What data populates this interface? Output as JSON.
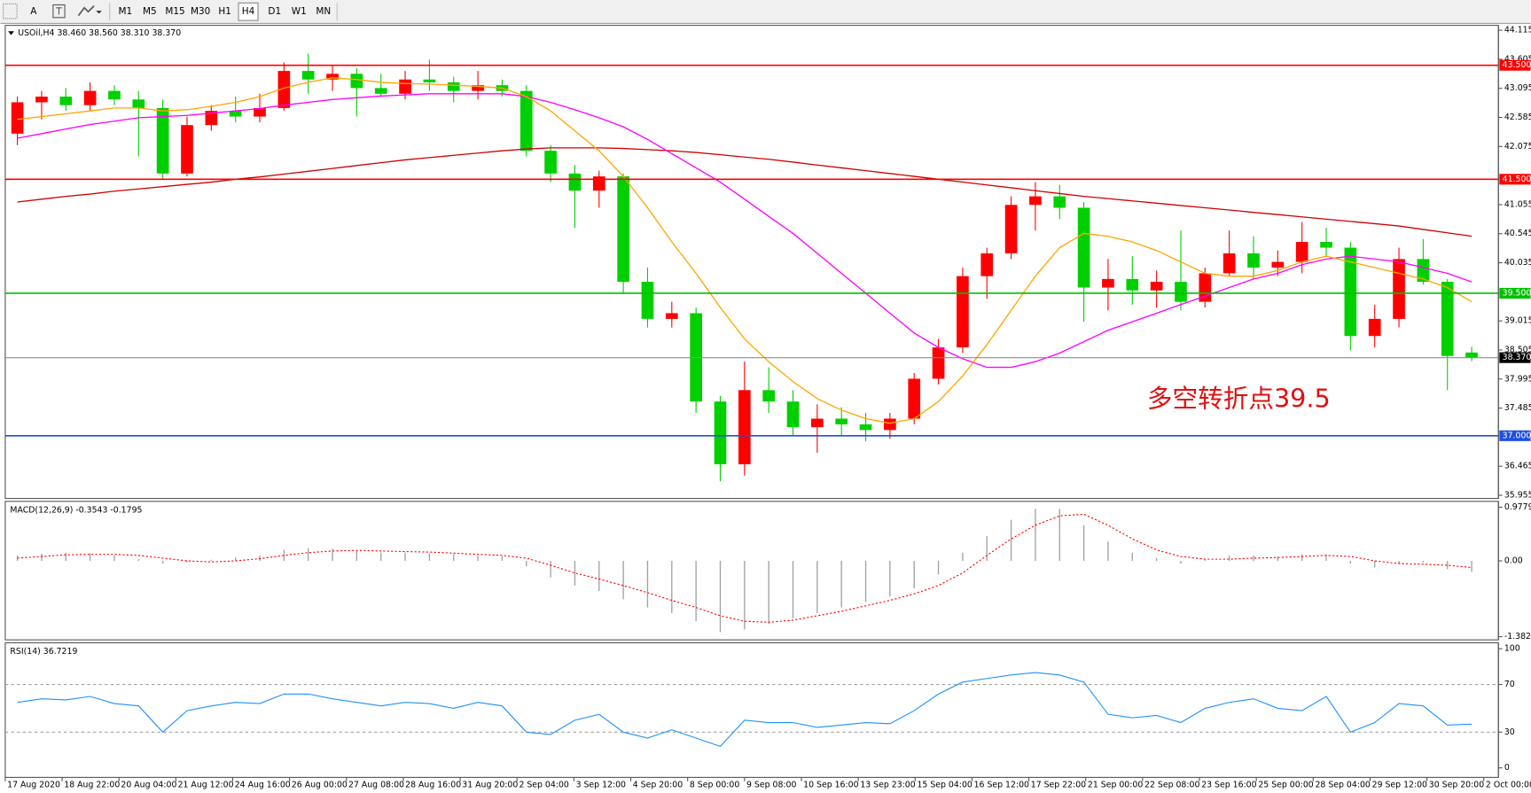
{
  "toolbar": {
    "tools": [
      "A"
    ],
    "timeframes": [
      "M1",
      "M5",
      "M15",
      "M30",
      "H1",
      "H4",
      "D1",
      "W1",
      "MN"
    ]
  },
  "chart_data": [
    {
      "type": "candlestick",
      "title": "USOil,H4  38.460 38.560 38.310 38.370",
      "ylim": [
        35.9,
        44.2
      ],
      "yticks": [
        44.115,
        43.605,
        43.095,
        42.585,
        42.075,
        41.055,
        40.545,
        40.035,
        39.015,
        38.505,
        37.995,
        37.485,
        36.465,
        35.955
      ],
      "up_color": "#ff0000",
      "down_color": "#00d000",
      "open": [
        42.3,
        42.85,
        42.95,
        42.8,
        43.05,
        42.9,
        42.75,
        41.6,
        42.45,
        42.7,
        42.6,
        42.75,
        43.4,
        43.25,
        43.35,
        43.1,
        43.0,
        43.25,
        43.2,
        43.05,
        43.15,
        43.05,
        42.0,
        41.6,
        41.3,
        41.55,
        39.7,
        39.05,
        39.15,
        37.6,
        36.5,
        37.8,
        37.6,
        37.15,
        37.3,
        37.2,
        37.1,
        37.3,
        38.0,
        38.55,
        39.8,
        40.2,
        41.05,
        41.2,
        41.0,
        39.6,
        39.75,
        39.55,
        39.7,
        39.35,
        39.85,
        40.2,
        39.95,
        40.05,
        40.4,
        40.3,
        38.75,
        39.05,
        40.1,
        39.7,
        38.46
      ],
      "high": [
        42.95,
        43.05,
        43.1,
        43.2,
        43.15,
        43.05,
        42.9,
        42.6,
        42.8,
        42.95,
        43.0,
        43.55,
        43.7,
        43.5,
        43.45,
        43.35,
        43.4,
        43.6,
        43.3,
        43.4,
        43.25,
        43.15,
        42.1,
        41.75,
        41.65,
        41.6,
        39.95,
        39.35,
        39.25,
        37.7,
        38.3,
        38.2,
        37.8,
        37.55,
        37.5,
        37.4,
        37.4,
        38.1,
        38.7,
        39.95,
        40.3,
        41.2,
        41.45,
        41.4,
        41.1,
        40.1,
        40.15,
        39.9,
        40.6,
        39.95,
        40.6,
        40.5,
        40.25,
        40.75,
        40.65,
        40.4,
        39.3,
        40.3,
        40.45,
        39.75,
        38.56
      ],
      "low": [
        42.1,
        42.55,
        42.7,
        42.7,
        42.8,
        41.9,
        41.5,
        41.55,
        42.35,
        42.5,
        42.5,
        42.7,
        43.0,
        43.05,
        42.6,
        42.95,
        42.9,
        43.05,
        42.85,
        42.9,
        42.95,
        41.9,
        41.45,
        40.65,
        41.0,
        39.5,
        38.9,
        38.9,
        37.4,
        36.2,
        36.3,
        37.4,
        37.0,
        36.7,
        37.0,
        36.9,
        36.95,
        37.2,
        37.9,
        38.45,
        39.4,
        40.1,
        40.6,
        40.8,
        39.0,
        39.2,
        39.3,
        39.25,
        39.2,
        39.25,
        39.8,
        39.75,
        39.8,
        39.85,
        40.15,
        38.5,
        38.55,
        38.9,
        39.65,
        37.8,
        38.31
      ],
      "close": [
        42.85,
        42.95,
        42.8,
        43.05,
        42.9,
        42.75,
        41.6,
        42.45,
        42.7,
        42.6,
        42.75,
        43.4,
        43.25,
        43.35,
        43.1,
        43.0,
        43.25,
        43.2,
        43.05,
        43.15,
        43.05,
        42.0,
        41.6,
        41.3,
        41.55,
        39.7,
        39.05,
        39.15,
        37.6,
        36.5,
        37.8,
        37.6,
        37.15,
        37.3,
        37.2,
        37.1,
        37.3,
        38.0,
        38.55,
        39.8,
        40.2,
        41.05,
        41.2,
        41.0,
        39.6,
        39.75,
        39.55,
        39.7,
        39.35,
        39.85,
        40.2,
        39.95,
        40.05,
        40.4,
        40.3,
        38.75,
        39.05,
        40.1,
        39.7,
        38.4,
        38.37
      ],
      "series": [
        {
          "color": "#d00000",
          "values": [
            41.1,
            41.15,
            41.2,
            41.24,
            41.29,
            41.33,
            41.37,
            41.41,
            41.45,
            41.5,
            41.54,
            41.59,
            41.64,
            41.69,
            41.74,
            41.79,
            41.84,
            41.88,
            41.92,
            41.96,
            42.0,
            42.03,
            42.05,
            42.05,
            42.05,
            42.04,
            42.02,
            42.0,
            41.97,
            41.93,
            41.89,
            41.85,
            41.8,
            41.75,
            41.7,
            41.65,
            41.6,
            41.55,
            41.5,
            41.45,
            41.4,
            41.35,
            41.3,
            41.25,
            41.2,
            41.16,
            41.12,
            41.08,
            41.04,
            41.0,
            40.96,
            40.92,
            40.88,
            40.84,
            40.8,
            40.76,
            40.72,
            40.68,
            40.62,
            40.56,
            40.5
          ]
        },
        {
          "color": "#ff00ff",
          "values": [
            42.22,
            42.3,
            42.38,
            42.46,
            42.52,
            42.58,
            42.6,
            42.62,
            42.66,
            42.7,
            42.74,
            42.8,
            42.85,
            42.9,
            42.93,
            42.96,
            42.98,
            43.0,
            43.0,
            43.0,
            43.0,
            42.95,
            42.85,
            42.72,
            42.58,
            42.42,
            42.2,
            41.95,
            41.7,
            41.45,
            41.15,
            40.85,
            40.55,
            40.2,
            39.85,
            39.5,
            39.15,
            38.8,
            38.55,
            38.35,
            38.2,
            38.2,
            38.3,
            38.45,
            38.65,
            38.85,
            39.0,
            39.15,
            39.3,
            39.45,
            39.6,
            39.75,
            39.85,
            40.0,
            40.1,
            40.15,
            40.1,
            40.05,
            39.95,
            39.85,
            39.7
          ]
        },
        {
          "color": "#ffa500",
          "values": [
            42.55,
            42.6,
            42.65,
            42.7,
            42.75,
            42.75,
            42.7,
            42.72,
            42.78,
            42.85,
            42.95,
            43.1,
            43.2,
            43.28,
            43.25,
            43.2,
            43.18,
            43.17,
            43.15,
            43.13,
            43.1,
            42.95,
            42.7,
            42.35,
            42.0,
            41.55,
            41.0,
            40.4,
            39.85,
            39.25,
            38.7,
            38.3,
            37.95,
            37.65,
            37.45,
            37.3,
            37.22,
            37.3,
            37.6,
            38.05,
            38.6,
            39.2,
            39.8,
            40.3,
            40.55,
            40.5,
            40.4,
            40.25,
            40.05,
            39.85,
            39.8,
            39.8,
            39.9,
            40.05,
            40.15,
            40.05,
            39.95,
            39.85,
            39.75,
            39.6,
            39.35
          ]
        }
      ],
      "hlines": [
        {
          "value": 43.5,
          "label": "43.500",
          "color": "#ff0000"
        },
        {
          "value": 41.5,
          "label": "41.500",
          "color": "#ff0000"
        },
        {
          "value": 39.5,
          "label": "39.500",
          "color": "#00c000"
        },
        {
          "value": 37,
          "label": "37.000",
          "color": "#1f4fe0"
        },
        {
          "value": 38.37,
          "label": "38.370",
          "color": "#7f8fa0",
          "label_color": "#000000"
        }
      ],
      "annotation": "多空转折点39.5"
    },
    {
      "type": "macd",
      "title": "MACD(12,26,9) -0.3543 -0.1795",
      "ylim": [
        -1.44,
        1.085
      ],
      "yticks": [
        0.9779,
        {
          "value": 0,
          "label": "0.00"
        },
        -1.382
      ],
      "hist_color": "#a0a0a0",
      "signal_color": "#ff0000",
      "values": [
        0.1,
        0.13,
        0.15,
        0.14,
        0.1,
        0.03,
        -0.05,
        -0.03,
        0.02,
        0.06,
        0.1,
        0.2,
        0.23,
        0.22,
        0.18,
        0.15,
        0.15,
        0.14,
        0.12,
        0.1,
        0.08,
        -0.1,
        -0.3,
        -0.45,
        -0.55,
        -0.7,
        -0.85,
        -0.95,
        -1.1,
        -1.3,
        -1.25,
        -1.15,
        -1.05,
        -0.95,
        -0.85,
        -0.75,
        -0.65,
        -0.5,
        -0.25,
        0.15,
        0.45,
        0.75,
        0.95,
        0.95,
        0.65,
        0.35,
        0.15,
        0.05,
        -0.05,
        0.02,
        0.1,
        0.1,
        0.08,
        0.12,
        0.12,
        -0.05,
        -0.12,
        -0.05,
        -0.03,
        -0.15,
        -0.2
      ],
      "signal": [
        0.05,
        0.08,
        0.11,
        0.12,
        0.12,
        0.1,
        0.05,
        0.0,
        -0.02,
        0.0,
        0.04,
        0.1,
        0.15,
        0.18,
        0.19,
        0.18,
        0.17,
        0.16,
        0.14,
        0.12,
        0.1,
        0.05,
        -0.08,
        -0.22,
        -0.33,
        -0.45,
        -0.58,
        -0.72,
        -0.85,
        -1.0,
        -1.1,
        -1.12,
        -1.08,
        -1.0,
        -0.92,
        -0.82,
        -0.72,
        -0.6,
        -0.45,
        -0.22,
        0.1,
        0.4,
        0.65,
        0.82,
        0.85,
        0.65,
        0.4,
        0.2,
        0.08,
        0.03,
        0.03,
        0.05,
        0.06,
        0.08,
        0.1,
        0.08,
        0.0,
        -0.05,
        -0.06,
        -0.08,
        -0.12
      ]
    },
    {
      "type": "line",
      "title": "RSI(14) 36.7219",
      "ylim": [
        -8,
        105
      ],
      "yticks": [
        100,
        70,
        30,
        0
      ],
      "levels": [
        70,
        30
      ],
      "color": "#1e90ff",
      "values": [
        55,
        58,
        57,
        60,
        54,
        52,
        30,
        48,
        52,
        55,
        54,
        62,
        62,
        58,
        55,
        52,
        55,
        54,
        50,
        55,
        52,
        30,
        28,
        40,
        45,
        30,
        25,
        32,
        25,
        18,
        40,
        38,
        38,
        34,
        36,
        38,
        37,
        48,
        62,
        72,
        75,
        78,
        80,
        78,
        72,
        45,
        42,
        44,
        38,
        50,
        55,
        58,
        50,
        48,
        60,
        30,
        38,
        54,
        52,
        36,
        36.72
      ],
      "time_labels": [
        "17 Aug 2020",
        "18 Aug 22:00",
        "20 Aug 04:00",
        "21 Aug 12:00",
        "24 Aug 16:00",
        "26 Aug 00:00",
        "27 Aug 08:00",
        "28 Aug 16:00",
        "31 Aug 20:00",
        "2 Sep 04:00",
        "3 Sep 12:00",
        "4 Sep 20:00",
        "8 Sep 00:00",
        "9 Sep 08:00",
        "10 Sep 16:00",
        "13 Sep 23:00",
        "15 Sep 04:00",
        "16 Sep 12:00",
        "17 Sep 22:00",
        "21 Sep 00:00",
        "22 Sep 08:00",
        "23 Sep 16:00",
        "25 Sep 00:00",
        "28 Sep 04:00",
        "29 Sep 12:00",
        "30 Sep 20:00",
        "2 Oct 00:00"
      ]
    }
  ]
}
